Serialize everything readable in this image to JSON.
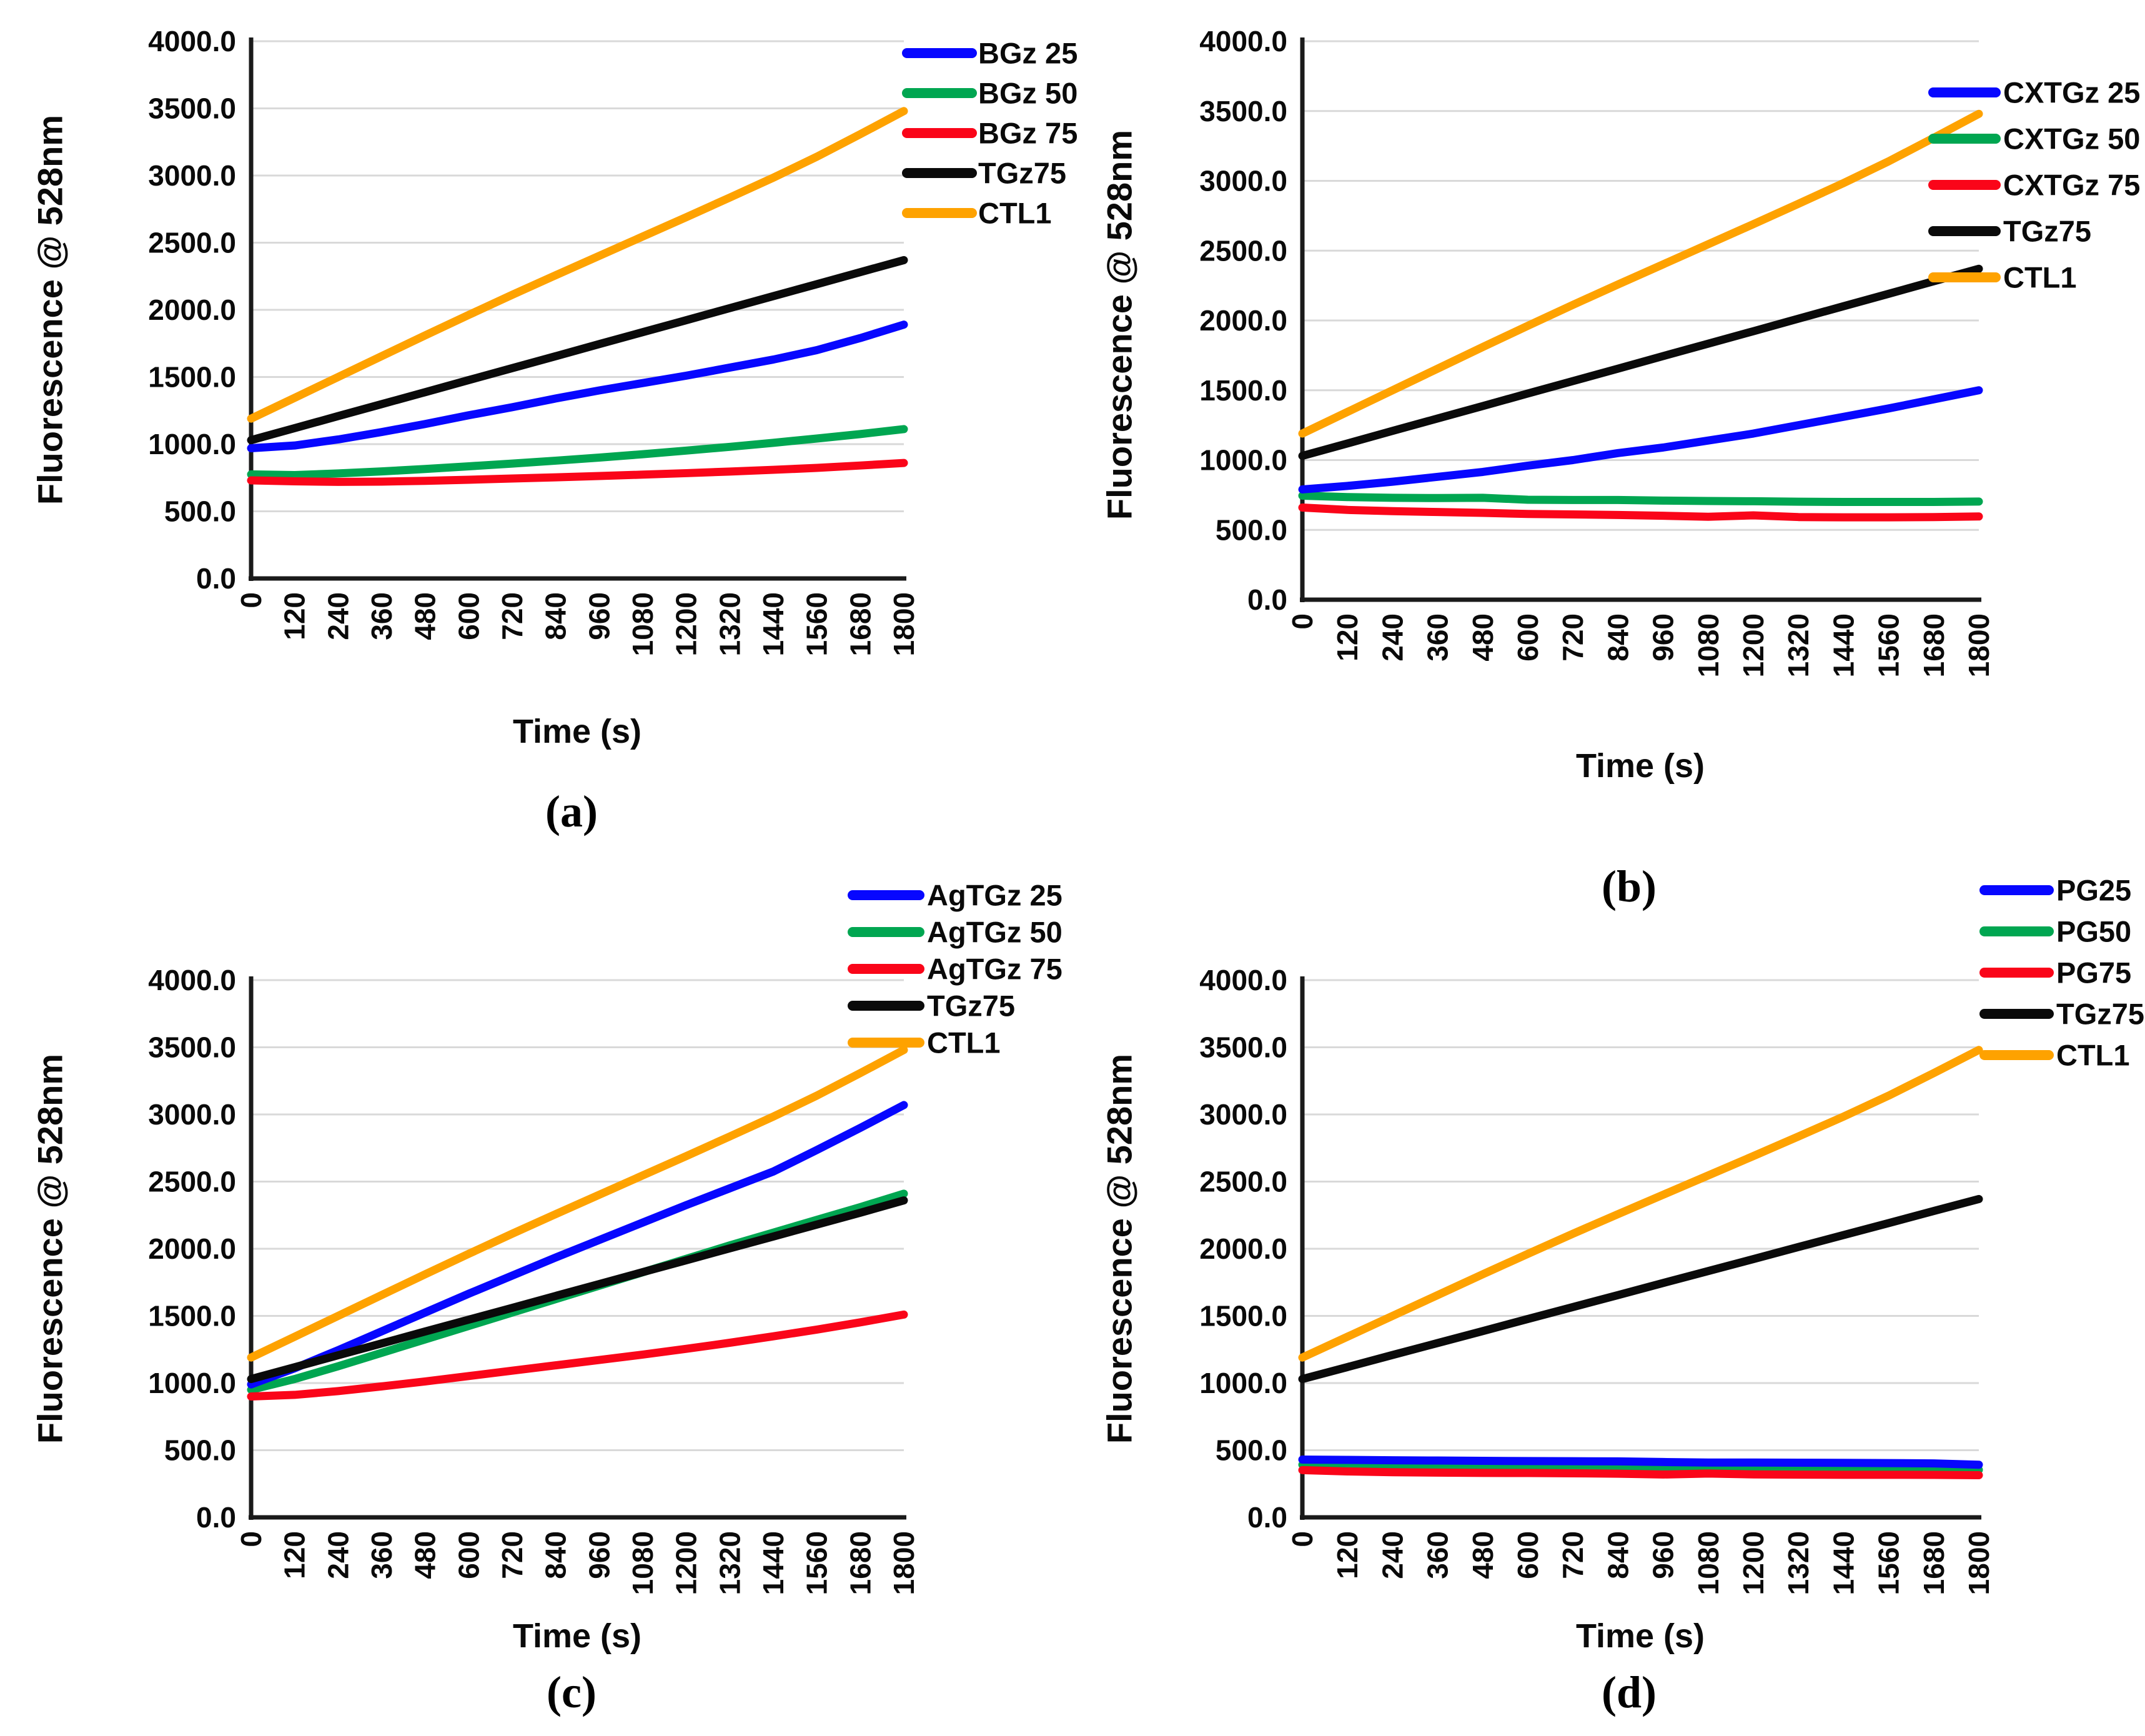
{
  "figure": {
    "background": "#ffffff",
    "panels": [
      "(a)",
      "(b)",
      "(c)",
      "(d)"
    ]
  },
  "colors": {
    "series_blue": "#0707FF",
    "series_green": "#00A651",
    "series_red": "#FA0519",
    "series_black": "#0A0A0A",
    "series_orange": "#FEA200",
    "gridline": "#D9D9D9",
    "axis": "#1A1A1A",
    "text": "#0A0A0A"
  },
  "chart_data": [
    {
      "id": "a",
      "caption": "(a)",
      "type": "line",
      "title": "",
      "xlabel": "Time (s)",
      "ylabel": "Fluorescence @ 528nm",
      "ylim": [
        0,
        4000
      ],
      "grid": "horizontal",
      "legend_position": "right",
      "x": [
        0,
        120,
        240,
        360,
        480,
        600,
        720,
        840,
        960,
        1080,
        1200,
        1320,
        1440,
        1560,
        1680,
        1800
      ],
      "x_tick_labels": [
        "0",
        "120",
        "240",
        "360",
        "480",
        "600",
        "720",
        "840",
        "960",
        "1080",
        "1200",
        "1320",
        "1440",
        "1560",
        "1680",
        "1800"
      ],
      "y_ticks": [
        0,
        500,
        1000,
        1500,
        2000,
        2500,
        3000,
        3500,
        4000
      ],
      "y_tick_labels": [
        "0.0",
        "500.0",
        "1000.0",
        "1500.0",
        "2000.0",
        "2500.0",
        "3000.0",
        "3500.0",
        "4000.0"
      ],
      "series": [
        {
          "name": "BGz 25",
          "color": "#0707FF",
          "values": [
            970,
            990,
            1035,
            1090,
            1150,
            1215,
            1275,
            1340,
            1400,
            1455,
            1510,
            1570,
            1630,
            1700,
            1790,
            1890
          ]
        },
        {
          "name": "BGz 50",
          "color": "#00A651",
          "values": [
            775,
            770,
            782,
            797,
            815,
            835,
            855,
            877,
            900,
            925,
            952,
            980,
            1010,
            1042,
            1075,
            1112
          ]
        },
        {
          "name": "BGz 75",
          "color": "#FA0519",
          "values": [
            730,
            723,
            719,
            721,
            727,
            735,
            744,
            753,
            763,
            773,
            784,
            796,
            809,
            823,
            841,
            860
          ]
        },
        {
          "name": "TGz75",
          "color": "#0A0A0A",
          "values": [
            1030,
            1119,
            1209,
            1298,
            1387,
            1477,
            1566,
            1655,
            1745,
            1834,
            1923,
            2013,
            2102,
            2191,
            2281,
            2370
          ]
        },
        {
          "name": "CTL1",
          "color": "#FEA200",
          "values": [
            1190,
            1345,
            1500,
            1655,
            1810,
            1962,
            2112,
            2258,
            2402,
            2546,
            2690,
            2836,
            2984,
            3140,
            3308,
            3480
          ]
        }
      ]
    },
    {
      "id": "b",
      "caption": "(b)",
      "type": "line",
      "title": "",
      "xlabel": "Time (s)",
      "ylabel": "Fluorescence @ 528nm",
      "ylim": [
        0,
        4000
      ],
      "grid": "horizontal",
      "legend_position": "right",
      "x": [
        0,
        120,
        240,
        360,
        480,
        600,
        720,
        840,
        960,
        1080,
        1200,
        1320,
        1440,
        1560,
        1680,
        1800
      ],
      "x_tick_labels": [
        "0",
        "120",
        "240",
        "360",
        "480",
        "600",
        "720",
        "840",
        "960",
        "1080",
        "1200",
        "1320",
        "1440",
        "1560",
        "1680",
        "1800"
      ],
      "y_ticks": [
        0,
        500,
        1000,
        1500,
        2000,
        2500,
        3000,
        3500,
        4000
      ],
      "y_tick_labels": [
        "0.0",
        "500.0",
        "1000.0",
        "1500.0",
        "2000.0",
        "2500.0",
        "3000.0",
        "3500.0",
        "4000.0"
      ],
      "series": [
        {
          "name": "CXTGz 25",
          "color": "#0707FF",
          "values": [
            790,
            815,
            845,
            880,
            915,
            960,
            1000,
            1050,
            1090,
            1140,
            1190,
            1250,
            1310,
            1370,
            1435,
            1500
          ]
        },
        {
          "name": "CXTGz 50",
          "color": "#00A651",
          "values": [
            745,
            735,
            730,
            728,
            730,
            716,
            714,
            714,
            710,
            707,
            705,
            702,
            700,
            700,
            700,
            703
          ]
        },
        {
          "name": "CXTGz 75",
          "color": "#FA0519",
          "values": [
            660,
            643,
            634,
            628,
            622,
            614,
            611,
            607,
            601,
            594,
            604,
            592,
            590,
            590,
            592,
            596
          ]
        },
        {
          "name": "TGz75",
          "color": "#0A0A0A",
          "values": [
            1030,
            1119,
            1209,
            1298,
            1387,
            1477,
            1566,
            1655,
            1745,
            1834,
            1923,
            2013,
            2102,
            2191,
            2281,
            2370
          ]
        },
        {
          "name": "CTL1",
          "color": "#FEA200",
          "values": [
            1190,
            1345,
            1500,
            1655,
            1810,
            1962,
            2112,
            2258,
            2402,
            2546,
            2690,
            2836,
            2984,
            3140,
            3308,
            3480
          ]
        }
      ]
    },
    {
      "id": "c",
      "caption": "(c)",
      "type": "line",
      "title": "",
      "xlabel": "Time (s)",
      "ylabel": "Fluorescence @ 528nm",
      "ylim": [
        0,
        4000
      ],
      "grid": "horizontal",
      "legend_position": "right",
      "x": [
        0,
        120,
        240,
        360,
        480,
        600,
        720,
        840,
        960,
        1080,
        1200,
        1320,
        1440,
        1560,
        1680,
        1800
      ],
      "x_tick_labels": [
        "0",
        "120",
        "240",
        "360",
        "480",
        "600",
        "720",
        "840",
        "960",
        "1080",
        "1200",
        "1320",
        "1440",
        "1560",
        "1680",
        "1800"
      ],
      "y_ticks": [
        0,
        500,
        1000,
        1500,
        2000,
        2500,
        3000,
        3500,
        4000
      ],
      "y_tick_labels": [
        "0.0",
        "500.0",
        "1000.0",
        "1500.0",
        "2000.0",
        "2500.0",
        "3000.0",
        "3500.0",
        "4000.0"
      ],
      "series": [
        {
          "name": "AgTGz 25",
          "color": "#0707FF",
          "values": [
            990,
            1110,
            1245,
            1385,
            1525,
            1665,
            1800,
            1935,
            2065,
            2195,
            2325,
            2450,
            2575,
            2735,
            2900,
            3070
          ]
        },
        {
          "name": "AgTGz 50",
          "color": "#00A651",
          "values": [
            950,
            1030,
            1125,
            1225,
            1325,
            1425,
            1525,
            1625,
            1725,
            1825,
            1925,
            2025,
            2120,
            2215,
            2310,
            2410
          ]
        },
        {
          "name": "AgTGz 75",
          "color": "#FA0519",
          "values": [
            900,
            912,
            940,
            975,
            1012,
            1052,
            1092,
            1132,
            1172,
            1212,
            1255,
            1300,
            1348,
            1398,
            1452,
            1510
          ]
        },
        {
          "name": "TGz75",
          "color": "#0A0A0A",
          "values": [
            1030,
            1118,
            1207,
            1295,
            1384,
            1472,
            1560,
            1649,
            1737,
            1826,
            1914,
            2003,
            2091,
            2180,
            2268,
            2360
          ]
        },
        {
          "name": "CTL1",
          "color": "#FEA200",
          "values": [
            1190,
            1345,
            1500,
            1655,
            1810,
            1962,
            2112,
            2258,
            2402,
            2546,
            2690,
            2836,
            2984,
            3140,
            3308,
            3480
          ]
        }
      ]
    },
    {
      "id": "d",
      "caption": "(d)",
      "type": "line",
      "title": "",
      "xlabel": "Time (s)",
      "ylabel": "Fluorescence @ 528nm",
      "ylim": [
        0,
        4000
      ],
      "grid": "horizontal",
      "legend_position": "right",
      "x": [
        0,
        120,
        240,
        360,
        480,
        600,
        720,
        840,
        960,
        1080,
        1200,
        1320,
        1440,
        1560,
        1680,
        1800
      ],
      "x_tick_labels": [
        "0",
        "120",
        "240",
        "360",
        "480",
        "600",
        "720",
        "840",
        "960",
        "1080",
        "1200",
        "1320",
        "1440",
        "1560",
        "1680",
        "1800"
      ],
      "y_ticks": [
        0,
        500,
        1000,
        1500,
        2000,
        2500,
        3000,
        3500,
        4000
      ],
      "y_tick_labels": [
        "0.0",
        "500.0",
        "1000.0",
        "1500.0",
        "2000.0",
        "2500.0",
        "3000.0",
        "3500.0",
        "4000.0"
      ],
      "series": [
        {
          "name": "PG25",
          "color": "#0707FF",
          "values": [
            430,
            428,
            425,
            423,
            421,
            419,
            418,
            417,
            412,
            408,
            408,
            407,
            406,
            404,
            402,
            392
          ]
        },
        {
          "name": "PG50",
          "color": "#00A651",
          "values": [
            392,
            382,
            376,
            372,
            371,
            369,
            366,
            363,
            360,
            358,
            361,
            363,
            365,
            362,
            359,
            354
          ]
        },
        {
          "name": "PG75",
          "color": "#FA0519",
          "values": [
            352,
            342,
            336,
            333,
            331,
            330,
            328,
            325,
            319,
            326,
            320,
            318,
            317,
            317,
            316,
            314
          ]
        },
        {
          "name": "TGz75",
          "color": "#0A0A0A",
          "values": [
            1030,
            1119,
            1209,
            1298,
            1387,
            1477,
            1566,
            1655,
            1745,
            1834,
            1923,
            2013,
            2102,
            2191,
            2281,
            2370
          ]
        },
        {
          "name": "CTL1",
          "color": "#FEA200",
          "values": [
            1190,
            1345,
            1500,
            1655,
            1810,
            1962,
            2112,
            2258,
            2402,
            2546,
            2690,
            2836,
            2984,
            3140,
            3308,
            3480
          ]
        }
      ]
    }
  ]
}
